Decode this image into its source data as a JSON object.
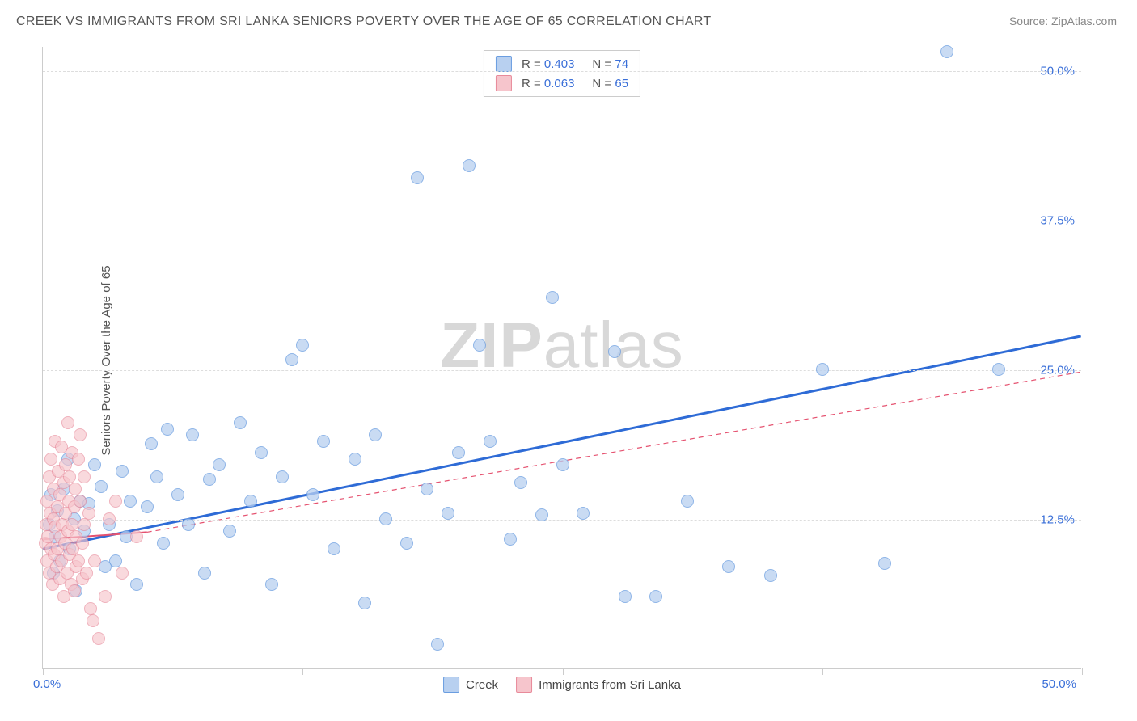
{
  "title": "CREEK VS IMMIGRANTS FROM SRI LANKA SENIORS POVERTY OVER THE AGE OF 65 CORRELATION CHART",
  "source": "Source: ZipAtlas.com",
  "y_axis_label": "Seniors Poverty Over the Age of 65",
  "watermark_bold": "ZIP",
  "watermark_rest": "atlas",
  "xlim": [
    0,
    50
  ],
  "ylim": [
    0,
    52
  ],
  "x_origin_label": "0.0%",
  "x_max_label": "50.0%",
  "y_ticks": [
    12.5,
    25.0,
    37.5,
    50.0
  ],
  "y_tick_labels": [
    "12.5%",
    "25.0%",
    "37.5%",
    "50.0%"
  ],
  "x_ticks": [
    0,
    12.5,
    25,
    37.5,
    50
  ],
  "grid_color": "#dddddd",
  "series": [
    {
      "name": "Creek",
      "fill": "#b8d0f0",
      "stroke": "#6a9de0",
      "line_color": "#2e6bd6",
      "line_dash": "none",
      "line_width": 3,
      "marker_radius": 8,
      "marker_opacity": 0.75,
      "R": "0.403",
      "N": "74",
      "trend": {
        "x1": 0,
        "y1": 10.0,
        "x2": 50,
        "y2": 27.8
      },
      "points": [
        [
          0.3,
          12.0
        ],
        [
          0.4,
          14.5
        ],
        [
          0.5,
          8.0
        ],
        [
          0.6,
          11.0
        ],
        [
          0.7,
          13.2
        ],
        [
          0.8,
          9.0
        ],
        [
          1.0,
          15.0
        ],
        [
          1.2,
          17.5
        ],
        [
          1.3,
          10.0
        ],
        [
          1.5,
          12.5
        ],
        [
          1.6,
          6.5
        ],
        [
          1.8,
          14.0
        ],
        [
          2.0,
          11.5
        ],
        [
          2.2,
          13.8
        ],
        [
          2.5,
          17.0
        ],
        [
          2.8,
          15.2
        ],
        [
          3.0,
          8.5
        ],
        [
          3.2,
          12.0
        ],
        [
          3.5,
          9.0
        ],
        [
          3.8,
          16.5
        ],
        [
          4.0,
          11.0
        ],
        [
          4.2,
          14.0
        ],
        [
          4.5,
          7.0
        ],
        [
          5.0,
          13.5
        ],
        [
          5.2,
          18.8
        ],
        [
          5.5,
          16.0
        ],
        [
          5.8,
          10.5
        ],
        [
          6.0,
          20.0
        ],
        [
          6.5,
          14.5
        ],
        [
          7.0,
          12.0
        ],
        [
          7.2,
          19.5
        ],
        [
          7.8,
          8.0
        ],
        [
          8.0,
          15.8
        ],
        [
          8.5,
          17.0
        ],
        [
          9.0,
          11.5
        ],
        [
          9.5,
          20.5
        ],
        [
          10.0,
          14.0
        ],
        [
          10.5,
          18.0
        ],
        [
          11.0,
          7.0
        ],
        [
          11.5,
          16.0
        ],
        [
          12.0,
          25.8
        ],
        [
          12.5,
          27.0
        ],
        [
          13.0,
          14.5
        ],
        [
          13.5,
          19.0
        ],
        [
          14.0,
          10.0
        ],
        [
          15.0,
          17.5
        ],
        [
          15.5,
          5.5
        ],
        [
          16.0,
          19.5
        ],
        [
          16.5,
          12.5
        ],
        [
          17.5,
          10.5
        ],
        [
          18.0,
          41.0
        ],
        [
          18.5,
          15.0
        ],
        [
          19.0,
          2.0
        ],
        [
          19.5,
          13.0
        ],
        [
          20.0,
          18.0
        ],
        [
          20.5,
          42.0
        ],
        [
          21.0,
          27.0
        ],
        [
          21.5,
          19.0
        ],
        [
          22.5,
          10.8
        ],
        [
          23.0,
          15.5
        ],
        [
          24.0,
          12.8
        ],
        [
          24.5,
          31.0
        ],
        [
          25.0,
          17.0
        ],
        [
          26.0,
          13.0
        ],
        [
          27.5,
          26.5
        ],
        [
          28.0,
          6.0
        ],
        [
          29.5,
          6.0
        ],
        [
          31.0,
          14.0
        ],
        [
          33.0,
          8.5
        ],
        [
          35.0,
          7.8
        ],
        [
          37.5,
          25.0
        ],
        [
          40.5,
          8.8
        ],
        [
          43.5,
          51.5
        ],
        [
          46.0,
          25.0
        ]
      ]
    },
    {
      "name": "Immigrants from Sri Lanka",
      "fill": "#f6c5cc",
      "stroke": "#e88a9a",
      "line_color": "#e55270",
      "line_dash": "solid-then-dash",
      "line_width": 2,
      "marker_radius": 8,
      "marker_opacity": 0.65,
      "R": "0.063",
      "N": "65",
      "trend_solid": {
        "x1": 0,
        "y1": 10.8,
        "x2": 5.0,
        "y2": 11.4
      },
      "trend_dash": {
        "x1": 5.0,
        "y1": 11.4,
        "x2": 50,
        "y2": 24.8
      },
      "points": [
        [
          0.1,
          10.5
        ],
        [
          0.15,
          12.0
        ],
        [
          0.2,
          9.0
        ],
        [
          0.2,
          14.0
        ],
        [
          0.25,
          11.0
        ],
        [
          0.3,
          16.0
        ],
        [
          0.3,
          8.0
        ],
        [
          0.35,
          13.0
        ],
        [
          0.4,
          10.0
        ],
        [
          0.4,
          17.5
        ],
        [
          0.45,
          7.0
        ],
        [
          0.5,
          12.5
        ],
        [
          0.5,
          15.0
        ],
        [
          0.55,
          9.5
        ],
        [
          0.6,
          11.8
        ],
        [
          0.6,
          19.0
        ],
        [
          0.65,
          8.5
        ],
        [
          0.7,
          13.5
        ],
        [
          0.7,
          10.0
        ],
        [
          0.75,
          16.5
        ],
        [
          0.8,
          7.5
        ],
        [
          0.8,
          14.5
        ],
        [
          0.85,
          11.0
        ],
        [
          0.9,
          18.5
        ],
        [
          0.9,
          9.0
        ],
        [
          0.95,
          12.0
        ],
        [
          1.0,
          15.5
        ],
        [
          1.0,
          6.0
        ],
        [
          1.05,
          10.5
        ],
        [
          1.1,
          13.0
        ],
        [
          1.1,
          17.0
        ],
        [
          1.15,
          8.0
        ],
        [
          1.2,
          11.5
        ],
        [
          1.2,
          20.5
        ],
        [
          1.25,
          14.0
        ],
        [
          1.3,
          9.5
        ],
        [
          1.3,
          16.0
        ],
        [
          1.35,
          7.0
        ],
        [
          1.4,
          12.0
        ],
        [
          1.4,
          18.0
        ],
        [
          1.45,
          10.0
        ],
        [
          1.5,
          13.5
        ],
        [
          1.5,
          6.5
        ],
        [
          1.55,
          15.0
        ],
        [
          1.6,
          8.5
        ],
        [
          1.6,
          11.0
        ],
        [
          1.7,
          17.5
        ],
        [
          1.7,
          9.0
        ],
        [
          1.8,
          14.0
        ],
        [
          1.8,
          19.5
        ],
        [
          1.9,
          10.5
        ],
        [
          1.9,
          7.5
        ],
        [
          2.0,
          12.0
        ],
        [
          2.0,
          16.0
        ],
        [
          2.1,
          8.0
        ],
        [
          2.2,
          13.0
        ],
        [
          2.3,
          5.0
        ],
        [
          2.4,
          4.0
        ],
        [
          2.5,
          9.0
        ],
        [
          2.7,
          2.5
        ],
        [
          3.0,
          6.0
        ],
        [
          3.2,
          12.5
        ],
        [
          3.5,
          14.0
        ],
        [
          3.8,
          8.0
        ],
        [
          4.5,
          11.0
        ]
      ]
    }
  ],
  "legend_bottom": [
    {
      "label": "Creek",
      "fill": "#b8d0f0",
      "stroke": "#6a9de0"
    },
    {
      "label": "Immigrants from Sri Lanka",
      "fill": "#f6c5cc",
      "stroke": "#e88a9a"
    }
  ]
}
